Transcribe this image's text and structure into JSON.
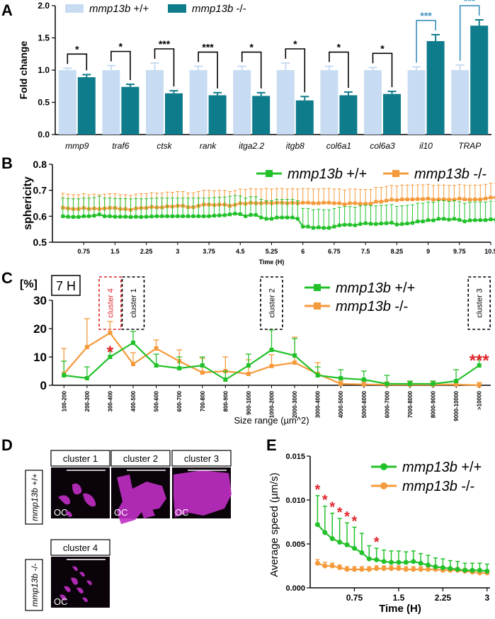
{
  "colors": {
    "wt_light": "#c7dcf2",
    "ko_teal": "#0f7c8c",
    "green": "#22c12a",
    "orange": "#f59a3a",
    "red": "#e0242a",
    "sig_blue": "#3a8fbd",
    "magenta": "#c02fc4",
    "black": "#000000",
    "white": "#ffffff"
  },
  "panel_labels": {
    "A": "A",
    "B": "B",
    "C": "C",
    "D": "D",
    "E": "E"
  },
  "chart_data": [
    {
      "id": "A",
      "type": "bar",
      "ylabel": "Fold change",
      "ylim": [
        0,
        2.0
      ],
      "yticks": [
        "0.0",
        "0.5",
        "1.0",
        "1.5",
        "2.0"
      ],
      "ytick_values": [
        0,
        0.5,
        1.0,
        1.5,
        2.0
      ],
      "categories": [
        "mmp9",
        "traf6",
        "ctsk",
        "rank",
        "itga2.2",
        "itgb8",
        "col6a1",
        "col6a3",
        "il10",
        "TRAP"
      ],
      "series": [
        {
          "name": "mmp13b +/+",
          "values": [
            1.0,
            1.0,
            1.0,
            1.0,
            1.0,
            1.0,
            1.0,
            1.0,
            1.0,
            1.0
          ],
          "errors": [
            0.03,
            0.07,
            0.11,
            0.06,
            0.06,
            0.11,
            0.06,
            0.04,
            0.05,
            0.08
          ]
        },
        {
          "name": "mmp13b -/-",
          "values": [
            0.89,
            0.74,
            0.64,
            0.61,
            0.6,
            0.53,
            0.61,
            0.63,
            1.45,
            1.69
          ],
          "errors": [
            0.04,
            0.04,
            0.04,
            0.04,
            0.05,
            0.06,
            0.05,
            0.04,
            0.1,
            0.09
          ]
        }
      ],
      "significance": [
        "*",
        "*",
        "***",
        "***",
        "*",
        "*",
        "*",
        "*",
        "***",
        "***"
      ]
    },
    {
      "id": "B",
      "type": "line",
      "ylabel": "sphericity",
      "xlabel": "Time (H)",
      "ylim": [
        0.5,
        0.8
      ],
      "yticks": [
        "0.5",
        "0.6",
        "0.7",
        "0.8"
      ],
      "ytick_values": [
        0.5,
        0.6,
        0.7,
        0.8
      ],
      "xlim": [
        0,
        10.5
      ],
      "xticks": [
        "0.75",
        "1.5",
        "2.25",
        "3",
        "3.75",
        "4.5",
        "5.25",
        "6",
        "6.75",
        "7.5",
        "8.25",
        "9",
        "9.75",
        "10.5"
      ],
      "xtick_values": [
        0.75,
        1.5,
        2.25,
        3,
        3.75,
        4.5,
        5.25,
        6,
        6.75,
        7.5,
        8.25,
        9,
        9.75,
        10.5
      ],
      "series": [
        {
          "name": "mmp13b +/+",
          "x_start": 0.25,
          "x_step": 0.125,
          "values": [
            0.6,
            0.598,
            0.597,
            0.597,
            0.6,
            0.6,
            0.602,
            0.607,
            0.6,
            0.6,
            0.598,
            0.598,
            0.598,
            0.597,
            0.598,
            0.597,
            0.598,
            0.599,
            0.6,
            0.6,
            0.6,
            0.6,
            0.6,
            0.6,
            0.6,
            0.6,
            0.6,
            0.6,
            0.6,
            0.602,
            0.603,
            0.604,
            0.607,
            0.61,
            0.608,
            0.6,
            0.605,
            0.605,
            0.595,
            0.59,
            0.59,
            0.595,
            0.595,
            0.595,
            0.595,
            0.59,
            0.56,
            0.56,
            0.555,
            0.557,
            0.555,
            0.555,
            0.56,
            0.565,
            0.567,
            0.567,
            0.565,
            0.57,
            0.573,
            0.571,
            0.57,
            0.572,
            0.573,
            0.575,
            0.568,
            0.57,
            0.572,
            0.574,
            0.58,
            0.58,
            0.585,
            0.584,
            0.59,
            0.59,
            0.587,
            0.59,
            0.586,
            0.58,
            0.584,
            0.585,
            0.585,
            0.585,
            0.588,
            0.587
          ],
          "error": 0.07
        },
        {
          "name": "mmp13b -/-",
          "x_start": 0.25,
          "x_step": 0.125,
          "values": [
            0.633,
            0.63,
            0.628,
            0.628,
            0.632,
            0.628,
            0.63,
            0.628,
            0.63,
            0.632,
            0.632,
            0.628,
            0.628,
            0.625,
            0.63,
            0.632,
            0.632,
            0.636,
            0.634,
            0.634,
            0.638,
            0.637,
            0.64,
            0.64,
            0.635,
            0.635,
            0.64,
            0.645,
            0.645,
            0.643,
            0.645,
            0.645,
            0.64,
            0.644,
            0.65,
            0.648,
            0.652,
            0.65,
            0.65,
            0.652,
            0.65,
            0.652,
            0.652,
            0.65,
            0.652,
            0.65,
            0.652,
            0.652,
            0.65,
            0.65,
            0.652,
            0.652,
            0.65,
            0.65,
            0.646,
            0.65,
            0.65,
            0.648,
            0.648,
            0.648,
            0.656,
            0.656,
            0.66,
            0.664,
            0.662,
            0.665,
            0.665,
            0.665,
            0.666,
            0.666,
            0.668,
            0.664,
            0.665,
            0.665,
            0.664,
            0.664,
            0.668,
            0.665,
            0.664,
            0.665,
            0.665,
            0.668,
            0.672,
            0.672
          ],
          "error": 0.055
        }
      ],
      "legend": [
        "mmp13b +/+",
        "mmp13b -/-"
      ]
    },
    {
      "id": "C",
      "type": "line",
      "ylabel": "[%]",
      "xlabel": "Size range (µm^2)",
      "ylim": [
        0,
        30
      ],
      "yticks": [
        "0",
        "10",
        "20",
        "30"
      ],
      "ytick_values": [
        0,
        10,
        20,
        30
      ],
      "timepoint": "7 H",
      "categories": [
        "100-200",
        "200-300",
        "300-400",
        "400-500",
        "500-600",
        "600-700",
        "700-800",
        "800-900",
        "900-1000",
        "1000-2000",
        "2000-3000",
        "3000-4000",
        "4000-5000",
        "5000-6000",
        "6000-7000",
        "7000-8000",
        "8000-9000",
        "9000-10000",
        ">10000"
      ],
      "series": [
        {
          "name": "mmp13b +/+",
          "values": [
            3.5,
            2.5,
            10,
            15,
            7,
            6,
            7,
            2,
            7,
            12.5,
            10.5,
            3.5,
            2.5,
            2,
            0.5,
            0.5,
            0.5,
            1.5,
            7
          ],
          "errors": [
            5,
            4,
            3,
            4,
            4,
            4,
            3,
            3,
            4,
            7,
            6,
            3,
            3,
            3,
            3,
            1,
            1,
            4,
            3
          ]
        },
        {
          "name": "mmp13b -/-",
          "values": [
            4,
            13.5,
            18.5,
            7.5,
            13,
            8.5,
            4.5,
            5,
            4,
            6.8,
            8,
            4,
            0.5,
            0.3,
            0.2,
            0.2,
            0.2,
            0.3,
            0
          ],
          "errors": [
            9,
            10,
            4,
            4,
            3,
            4,
            5,
            5,
            5,
            4,
            9,
            4,
            1,
            1,
            1,
            1,
            1,
            1,
            1
          ]
        }
      ],
      "clusters": [
        "cluster 4",
        "cluster 1",
        "cluster 2",
        "cluster 3"
      ],
      "significance": {
        "300-400": "*",
        ">10000": "***"
      },
      "legend": [
        "mmp13b +/+",
        "mmp13b -/-"
      ]
    },
    {
      "id": "E",
      "type": "line",
      "ylabel": "Average speed (µm/s)",
      "xlabel": "Time (H)",
      "ylim": [
        0,
        0.015
      ],
      "yticks": [
        "0.000",
        "0.005",
        "0.010",
        "0.015"
      ],
      "ytick_values": [
        0,
        0.005,
        0.01,
        0.015
      ],
      "xlim": [
        0,
        3.05
      ],
      "xticks": [
        "0.75",
        "1.5",
        "2.25",
        "3"
      ],
      "xtick_values": [
        0.75,
        1.5,
        2.25,
        3
      ],
      "series": [
        {
          "name": "mmp13b +/+",
          "x_start": 0.125,
          "x_step": 0.125,
          "values": [
            0.0072,
            0.0063,
            0.0056,
            0.0052,
            0.0049,
            0.0045,
            0.004,
            0.0033,
            0.0032,
            0.003,
            0.0029,
            0.0029,
            0.0029,
            0.003,
            0.0028,
            0.0026,
            0.0024,
            0.0023,
            0.0022,
            0.0021,
            0.002,
            0.002,
            0.002,
            0.0019
          ],
          "errors": [
            0.0033,
            0.003,
            0.0029,
            0.0027,
            0.0025,
            0.0024,
            0.0022,
            0.0015,
            0.0013,
            0.0013,
            0.0013,
            0.0013,
            0.0012,
            0.0012,
            0.0011,
            0.0011,
            0.001,
            0.001,
            0.0009,
            0.0009,
            0.0008,
            0.0008,
            0.0008,
            0.0008
          ]
        },
        {
          "name": "mmp13b -/-",
          "x_start": 0.125,
          "x_step": 0.125,
          "values": [
            0.0028,
            0.0025,
            0.0025,
            0.0023,
            0.0021,
            0.0021,
            0.0021,
            0.0021,
            0.0022,
            0.0022,
            0.0022,
            0.0022,
            0.0021,
            0.0021,
            0.0021,
            0.0021,
            0.0021,
            0.002,
            0.002,
            0.002,
            0.0019,
            0.0018,
            0.0017,
            0.0017
          ],
          "errors": [
            0.0004,
            0.0004,
            0.0003,
            0.0003,
            0.0003,
            0.0003,
            0.0003,
            0.0003,
            0.0003,
            0.0003,
            0.0003,
            0.0003,
            0.0003,
            0.0003,
            0.0003,
            0.0003,
            0.0003,
            0.0003,
            0.0003,
            0.0003,
            0.0003,
            0.0003,
            0.0003,
            0.0003
          ]
        }
      ],
      "significance_points": [
        0,
        1,
        2,
        3,
        4,
        5,
        8
      ],
      "significance_mark": "*",
      "legend": [
        "mmp13b +/+",
        "mmp13b -/-"
      ]
    }
  ],
  "panel_d": {
    "tiles": [
      {
        "title": "cluster 1",
        "label": "OC"
      },
      {
        "title": "cluster 2",
        "label": "OC"
      },
      {
        "title": "cluster 3",
        "label": "OC"
      },
      {
        "title": "cluster 4",
        "label": "OC"
      }
    ],
    "row_labels": [
      "mmp13b +/+",
      "mmp13b -/-"
    ]
  }
}
